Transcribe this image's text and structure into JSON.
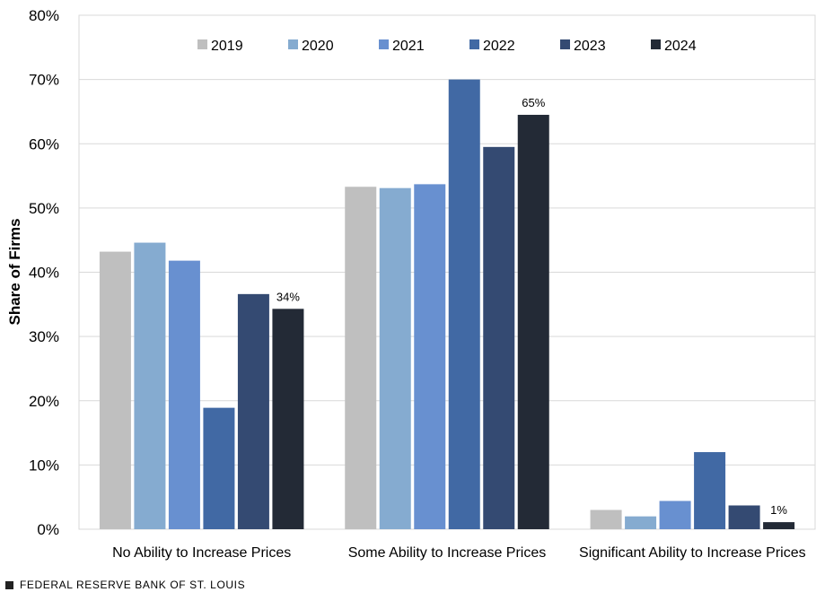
{
  "chart_data": {
    "type": "bar",
    "title": "",
    "xlabel": "",
    "ylabel": "Share of Firms",
    "ylim": [
      0,
      80
    ],
    "yticks": [
      "0%",
      "10%",
      "20%",
      "30%",
      "40%",
      "50%",
      "60%",
      "70%",
      "80%"
    ],
    "ytick_values": [
      0,
      10,
      20,
      30,
      40,
      50,
      60,
      70,
      80
    ],
    "categories": [
      "No Ability to Increase Prices",
      "Some Ability to Increase Prices",
      "Significant Ability to Increase Prices"
    ],
    "series": [
      {
        "name": "2019",
        "color": "#bfbfbf",
        "values": [
          43.2,
          53.3,
          3.0
        ]
      },
      {
        "name": "2020",
        "color": "#85abd0",
        "values": [
          44.6,
          53.1,
          2.0
        ]
      },
      {
        "name": "2021",
        "color": "#6890d0",
        "values": [
          41.8,
          53.7,
          4.4
        ]
      },
      {
        "name": "2022",
        "color": "#4169a4",
        "values": [
          18.9,
          70.0,
          12.0
        ]
      },
      {
        "name": "2023",
        "color": "#344a72",
        "values": [
          36.6,
          59.5,
          3.7
        ]
      },
      {
        "name": "2024",
        "color": "#232a36",
        "values": [
          34.3,
          64.5,
          1.1
        ]
      }
    ],
    "data_labels": [
      {
        "series": "2024",
        "category_index": 0,
        "text": "34%"
      },
      {
        "series": "2024",
        "category_index": 1,
        "text": "65%"
      },
      {
        "series": "2024",
        "category_index": 2,
        "text": "1%"
      }
    ],
    "legend_position": "top"
  },
  "source": "FEDERAL RESERVE BANK OF ST. LOUIS"
}
